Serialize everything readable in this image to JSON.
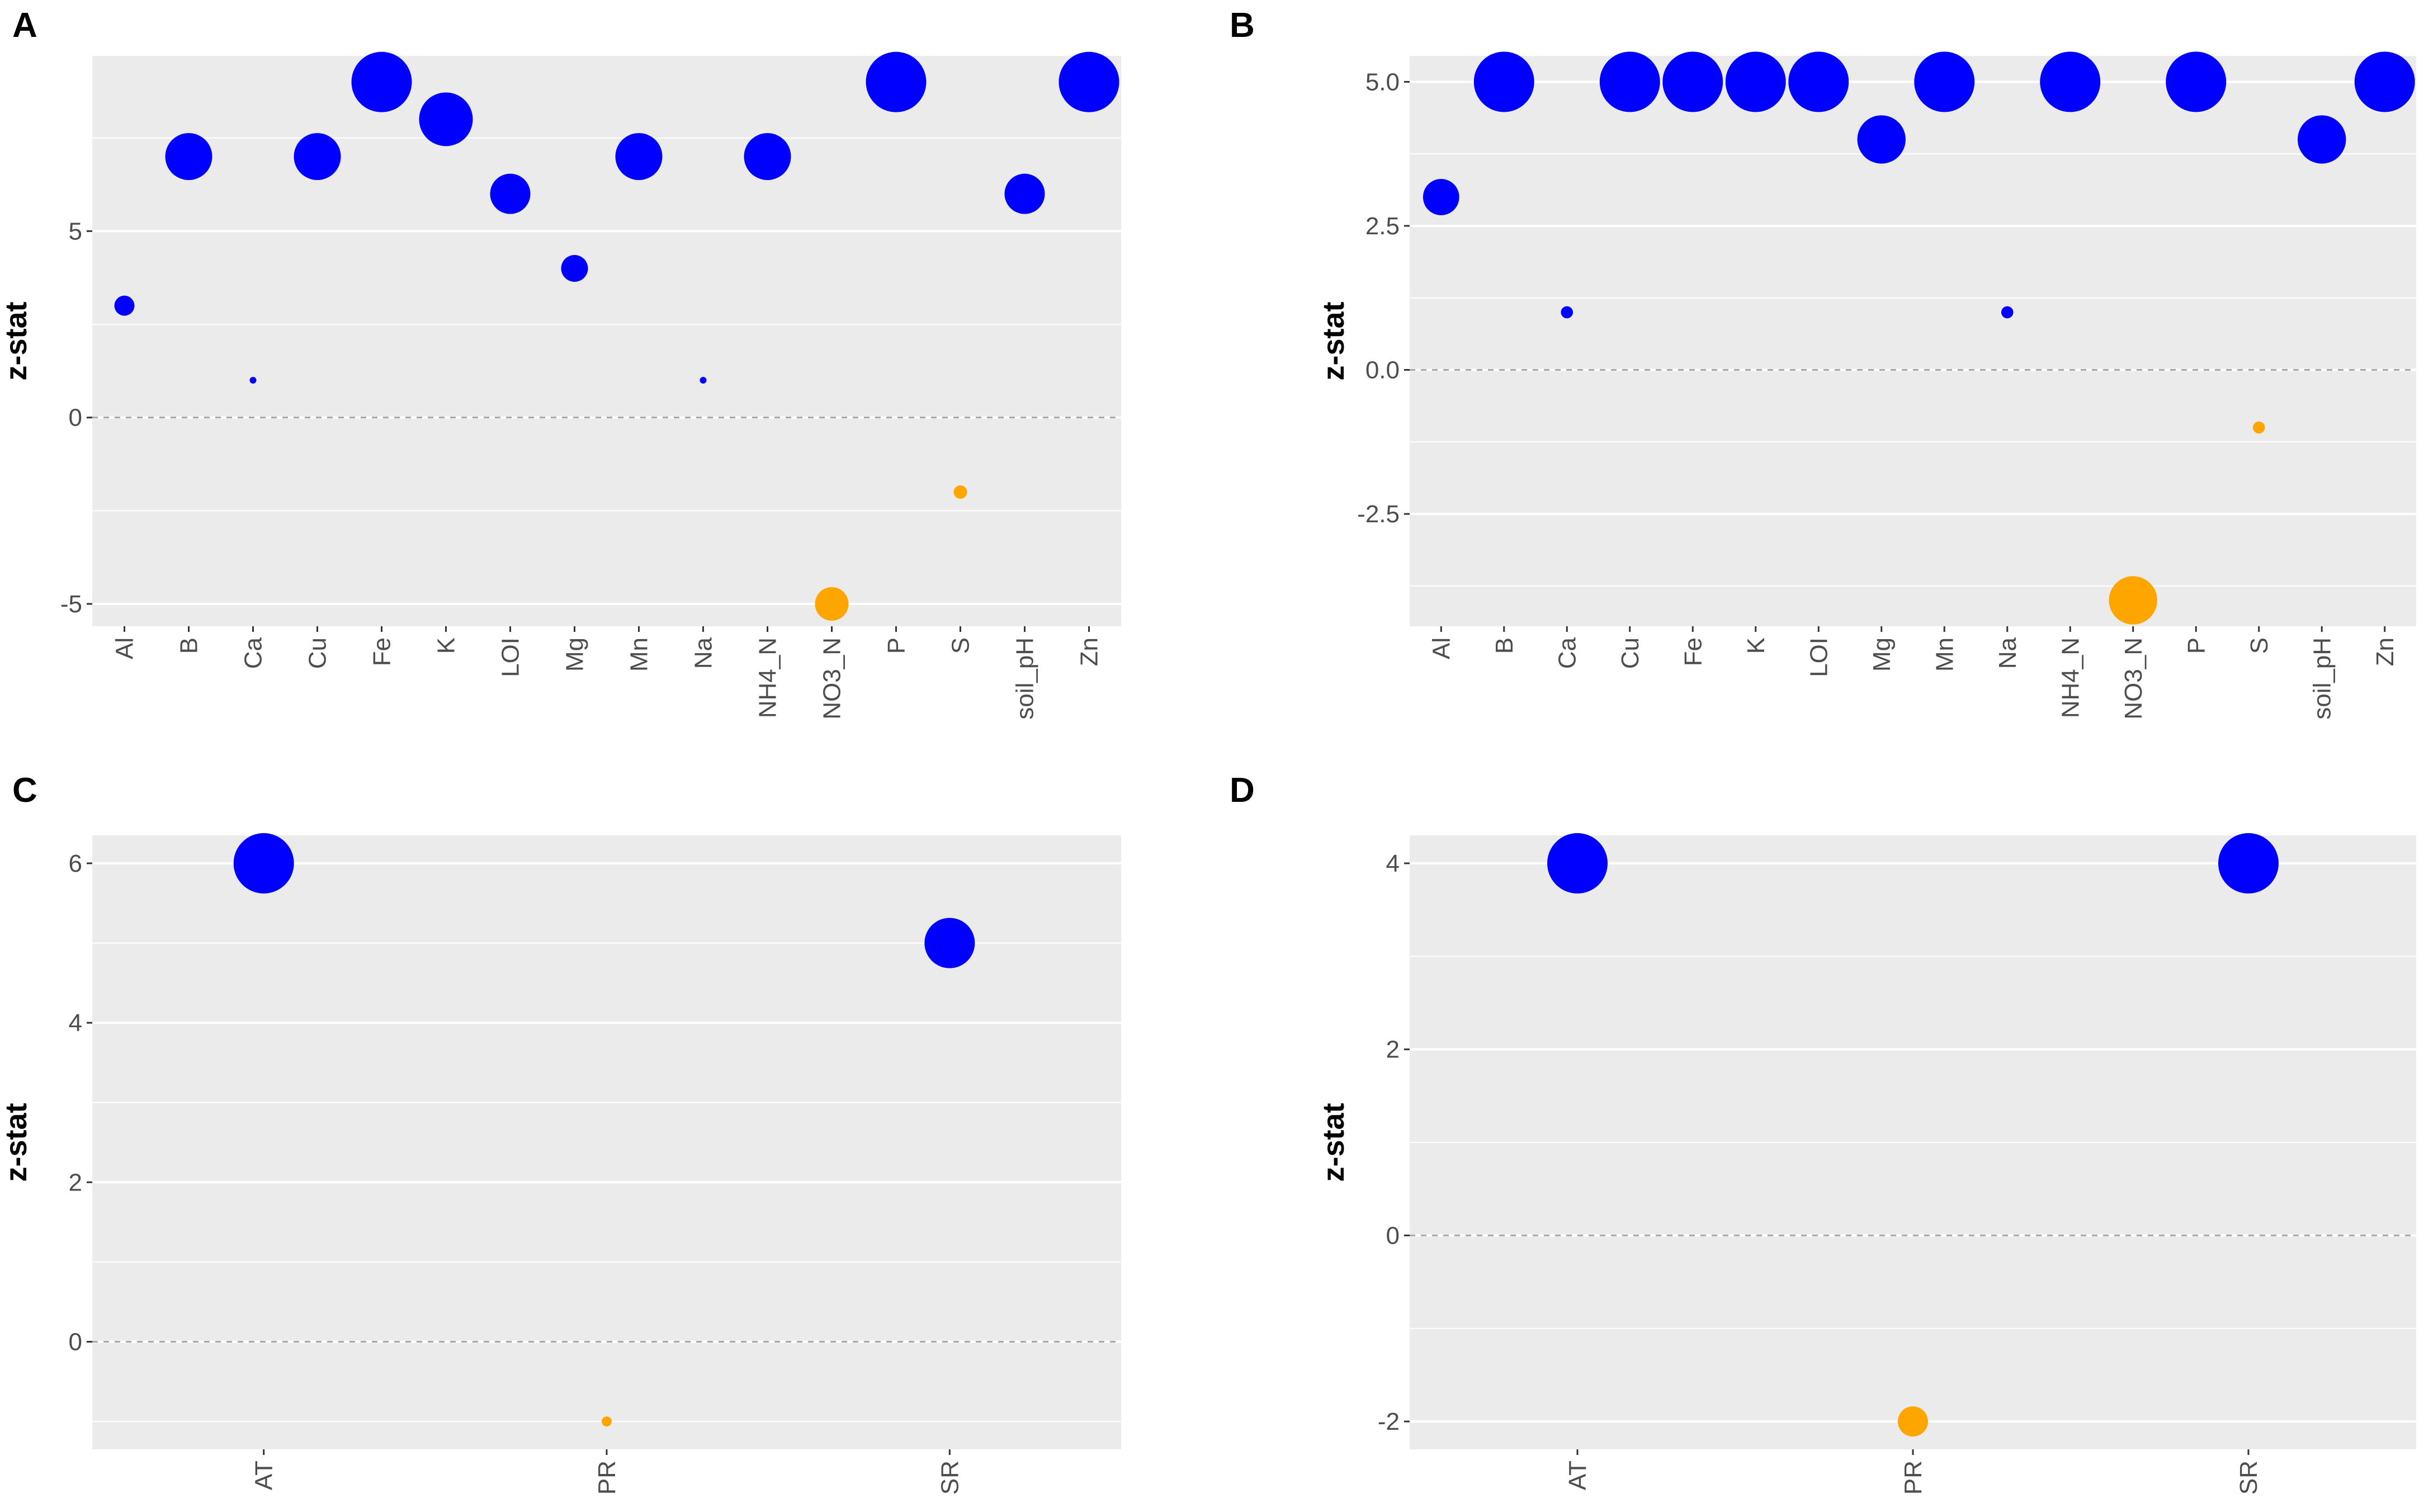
{
  "chart_data": [
    {
      "panel": "A",
      "type": "scatter",
      "ylabel": "z-stat",
      "xlabel": "",
      "categories": [
        "Al",
        "B",
        "Ca",
        "Cu",
        "Fe",
        "K",
        "LOI",
        "Mg",
        "Mn",
        "Na",
        "NH4_N",
        "NO3_N",
        "P",
        "S",
        "soil_pH",
        "Zn"
      ],
      "values": [
        3,
        7,
        1,
        7,
        9,
        8,
        6,
        4,
        7,
        1,
        7,
        -5,
        9,
        -2,
        6,
        9
      ],
      "ylim": [
        -5.6,
        9.7
      ],
      "yticks": [
        -5,
        0,
        5
      ],
      "ytick_labels": [
        "-5",
        "0",
        "5"
      ],
      "reference_line": 0,
      "positive_color": "#0000ff",
      "negative_color": "#ffa500",
      "size_encodes": "absolute z-stat"
    },
    {
      "panel": "B",
      "type": "scatter",
      "ylabel": "z-stat",
      "xlabel": "",
      "categories": [
        "Al",
        "B",
        "Ca",
        "Cu",
        "Fe",
        "K",
        "LOI",
        "Mg",
        "Mn",
        "Na",
        "NH4_N",
        "NO3_N",
        "P",
        "S",
        "soil_pH",
        "Zn"
      ],
      "values": [
        3,
        5,
        1,
        5,
        5,
        5,
        5,
        4,
        5,
        1,
        5,
        -4,
        5,
        -1,
        4,
        5
      ],
      "ylim": [
        -4.45,
        5.45
      ],
      "yticks": [
        -2.5,
        0,
        2.5,
        5
      ],
      "ytick_labels": [
        "-2.5",
        "0.0",
        "2.5",
        "5.0"
      ],
      "reference_line": 0,
      "positive_color": "#0000ff",
      "negative_color": "#ffa500",
      "size_encodes": "absolute z-stat"
    },
    {
      "panel": "C",
      "type": "scatter",
      "ylabel": "z-stat",
      "xlabel": "",
      "categories": [
        "AT",
        "PR",
        "SR"
      ],
      "values": [
        6,
        -1,
        5
      ],
      "ylim": [
        -1.35,
        6.35
      ],
      "yticks": [
        0,
        2,
        4,
        6
      ],
      "ytick_labels": [
        "0",
        "2",
        "4",
        "6"
      ],
      "reference_line": 0,
      "positive_color": "#0000ff",
      "negative_color": "#ffa500",
      "size_encodes": "absolute z-stat"
    },
    {
      "panel": "D",
      "type": "scatter",
      "ylabel": "z-stat",
      "xlabel": "",
      "categories": [
        "AT",
        "PR",
        "SR"
      ],
      "values": [
        4,
        -2,
        4
      ],
      "ylim": [
        -2.3,
        4.3
      ],
      "yticks": [
        -2,
        0,
        2,
        4
      ],
      "ytick_labels": [
        "-2",
        "0",
        "2",
        "4"
      ],
      "reference_line": 0,
      "positive_color": "#0000ff",
      "negative_color": "#ffa500",
      "size_encodes": "absolute z-stat"
    }
  ]
}
